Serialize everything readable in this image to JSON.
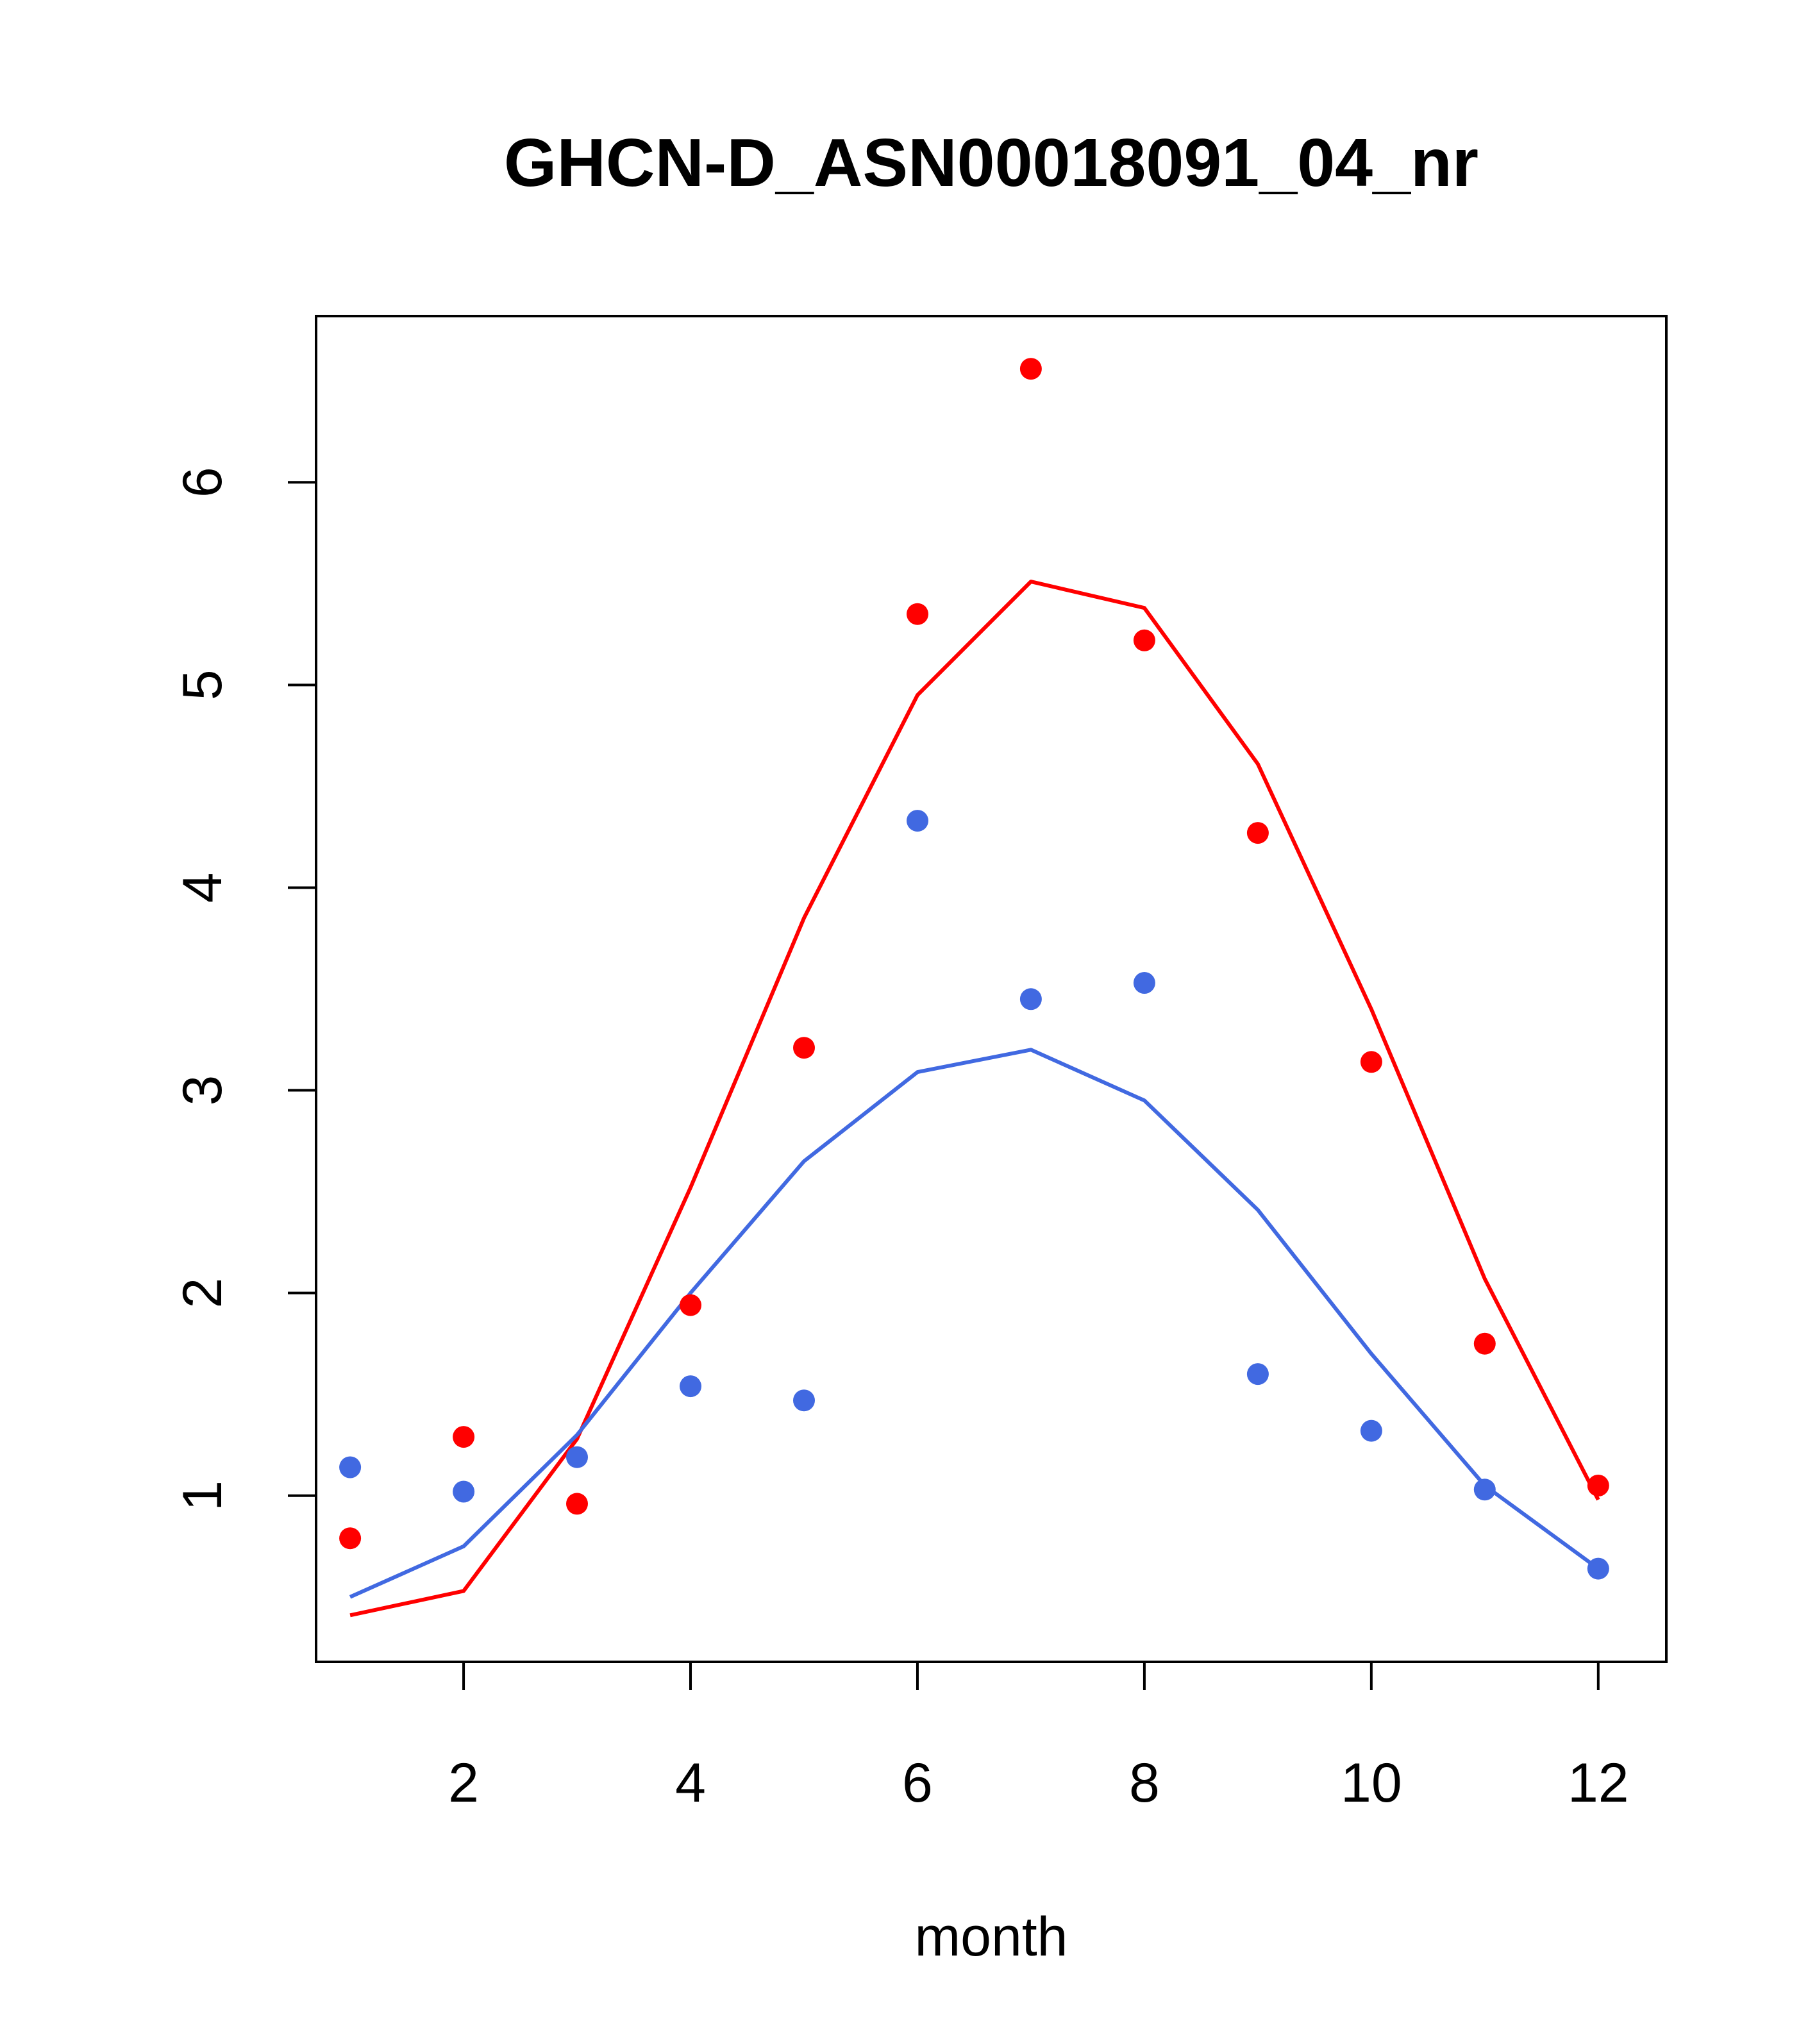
{
  "chart_data": {
    "type": "scatter",
    "title": "GHCN-D_ASN00018091_04_nr",
    "xlabel": "month",
    "ylabel": "",
    "xlim": [
      0.7,
      12.6
    ],
    "ylim": [
      0.18,
      6.82
    ],
    "x_ticks": [
      2,
      4,
      6,
      8,
      10,
      12
    ],
    "y_ticks": [
      1,
      2,
      3,
      4,
      5,
      6
    ],
    "grid": false,
    "legend": "none",
    "x": [
      1,
      2,
      3,
      4,
      5,
      6,
      7,
      8,
      9,
      10,
      11,
      12
    ],
    "series": [
      {
        "color": "#ff0000",
        "points": [
          0.79,
          1.29,
          0.96,
          1.94,
          3.21,
          5.35,
          6.56,
          5.22,
          4.27,
          3.14,
          1.75,
          1.05
        ],
        "line": [
          0.41,
          0.53,
          1.28,
          2.52,
          3.85,
          4.95,
          5.51,
          5.38,
          4.61,
          3.4,
          2.07,
          0.98
        ]
      },
      {
        "color": "#4169e1",
        "points": [
          1.14,
          1.02,
          1.19,
          1.54,
          1.47,
          4.33,
          3.45,
          3.53,
          1.6,
          1.32,
          1.03,
          0.64
        ],
        "line": [
          0.5,
          0.75,
          1.3,
          2.0,
          2.65,
          3.09,
          3.2,
          2.95,
          2.41,
          1.7,
          1.05,
          0.64
        ]
      }
    ]
  }
}
